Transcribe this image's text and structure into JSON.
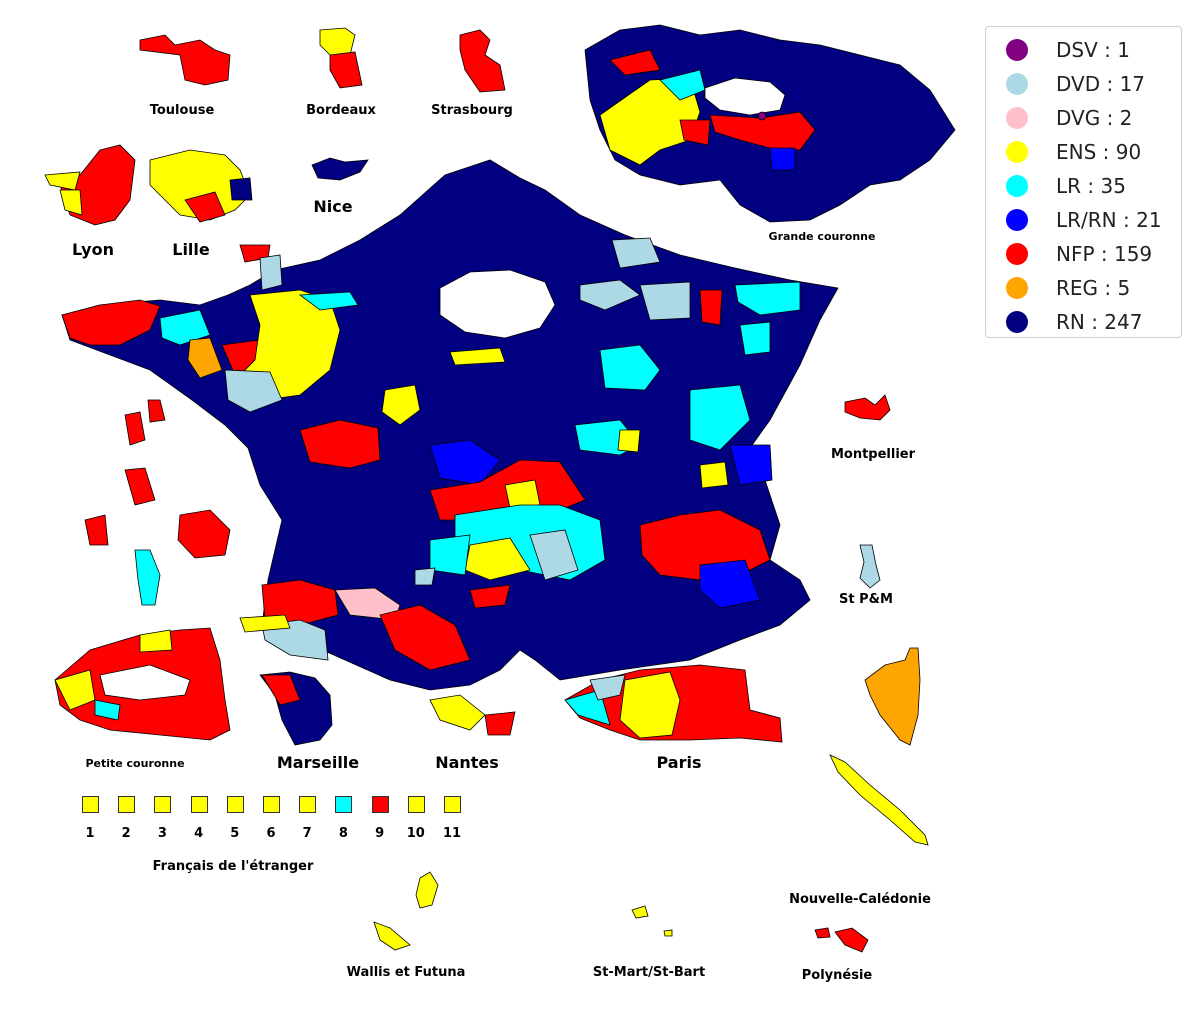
{
  "colors": {
    "DSV": "#800080",
    "DVD": "#add8e6",
    "DVG": "#ffc0cb",
    "ENS": "#ffff00",
    "LR": "#00ffff",
    "LR/RN": "#0000ff",
    "NFP": "#ff0000",
    "REG": "#ffa500",
    "RN": "#000080"
  },
  "legend": [
    {
      "party": "DSV",
      "label": "DSV : 1",
      "color": "#800080"
    },
    {
      "party": "DVD",
      "label": "DVD : 17",
      "color": "#add8e6"
    },
    {
      "party": "DVG",
      "label": "DVG : 2",
      "color": "#ffc0cb"
    },
    {
      "party": "ENS",
      "label": "ENS : 90",
      "color": "#ffff00"
    },
    {
      "party": "LR",
      "label": "LR : 35",
      "color": "#00ffff"
    },
    {
      "party": "LR/RN",
      "label": "LR/RN : 21",
      "color": "#0000ff"
    },
    {
      "party": "NFP",
      "label": "NFP : 159",
      "color": "#ff0000"
    },
    {
      "party": "REG",
      "label": "REG : 5",
      "color": "#ffa500"
    },
    {
      "party": "RN",
      "label": "RN : 247",
      "color": "#000080"
    }
  ],
  "insets": {
    "toulouse": "Toulouse",
    "bordeaux": "Bordeaux",
    "strasbourg": "Strasbourg",
    "lyon": "Lyon",
    "lille": "Lille",
    "nice": "Nice",
    "grande_couronne": "Grande couronne",
    "montpellier": "Montpellier",
    "st_pm": "St P&M",
    "petite_couronne": "Petite couronne",
    "marseille": "Marseille",
    "nantes": "Nantes",
    "paris": "Paris",
    "nouvelle_caledonie": "Nouvelle-Calédonie",
    "wallis_futuna": "Wallis et Futuna",
    "st_mart_st_bart": "St-Mart/St-Bart",
    "polynesie": "Polynésie"
  },
  "francais_etranger": {
    "title": "Français de l'étranger",
    "constituencies": [
      {
        "num": "1",
        "party": "ENS"
      },
      {
        "num": "2",
        "party": "ENS"
      },
      {
        "num": "3",
        "party": "ENS"
      },
      {
        "num": "4",
        "party": "ENS"
      },
      {
        "num": "5",
        "party": "ENS"
      },
      {
        "num": "6",
        "party": "ENS"
      },
      {
        "num": "7",
        "party": "ENS"
      },
      {
        "num": "8",
        "party": "LR"
      },
      {
        "num": "9",
        "party": "NFP"
      },
      {
        "num": "10",
        "party": "ENS"
      },
      {
        "num": "11",
        "party": "ENS"
      }
    ]
  }
}
